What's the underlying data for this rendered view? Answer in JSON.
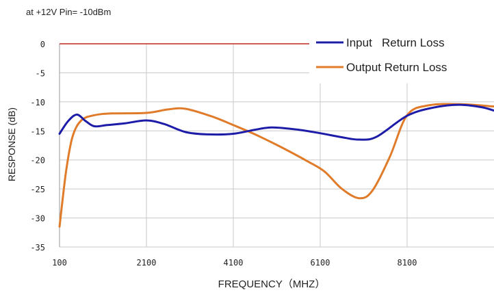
{
  "chart_data": {
    "type": "line",
    "subtitle": "at +12V Pin= -10dBm",
    "xlabel": "FREQUENCY（MHZ）",
    "ylabel": "RESPONSE (dB)",
    "xlim": [
      100,
      10100
    ],
    "ylim": [
      -35,
      0
    ],
    "x_ticks": [
      100,
      2100,
      4100,
      6100,
      8100
    ],
    "y_ticks": [
      0,
      -5,
      -10,
      -15,
      -20,
      -25,
      -30,
      -35
    ],
    "grid": true,
    "legend_position": "top-right",
    "reference_line": {
      "y": 0,
      "x_range": [
        100,
        6100
      ],
      "color": "#c0281e"
    },
    "series": [
      {
        "name": "Input   Return Loss",
        "color": "#1c1ca8",
        "points": [
          [
            100,
            -15.5
          ],
          [
            300,
            -13.3
          ],
          [
            500,
            -12.2
          ],
          [
            700,
            -13.3
          ],
          [
            900,
            -14.2
          ],
          [
            1200,
            -14.0
          ],
          [
            1600,
            -13.7
          ],
          [
            2100,
            -13.2
          ],
          [
            2500,
            -13.8
          ],
          [
            3000,
            -15.2
          ],
          [
            3500,
            -15.6
          ],
          [
            4100,
            -15.5
          ],
          [
            4600,
            -14.8
          ],
          [
            5000,
            -14.4
          ],
          [
            5600,
            -14.8
          ],
          [
            6100,
            -15.4
          ],
          [
            6600,
            -16.1
          ],
          [
            7000,
            -16.5
          ],
          [
            7400,
            -16.0
          ],
          [
            8100,
            -12.4
          ],
          [
            8700,
            -11.0
          ],
          [
            9300,
            -10.5
          ],
          [
            9800,
            -10.9
          ],
          [
            10100,
            -11.5
          ]
        ]
      },
      {
        "name": "Output Return Loss",
        "color": "#e07b2a",
        "points": [
          [
            100,
            -31.5
          ],
          [
            250,
            -22
          ],
          [
            400,
            -16
          ],
          [
            600,
            -13.2
          ],
          [
            900,
            -12.3
          ],
          [
            1300,
            -12.0
          ],
          [
            2100,
            -11.9
          ],
          [
            2600,
            -11.3
          ],
          [
            3000,
            -11.2
          ],
          [
            3600,
            -12.5
          ],
          [
            4100,
            -14.0
          ],
          [
            4600,
            -15.6
          ],
          [
            5200,
            -17.8
          ],
          [
            5800,
            -20.2
          ],
          [
            6200,
            -22.0
          ],
          [
            6600,
            -25.0
          ],
          [
            7000,
            -26.6
          ],
          [
            7300,
            -25.3
          ],
          [
            7700,
            -19.5
          ],
          [
            8100,
            -12.3
          ],
          [
            8600,
            -10.6
          ],
          [
            9300,
            -10.4
          ],
          [
            10100,
            -10.8
          ]
        ]
      }
    ]
  }
}
